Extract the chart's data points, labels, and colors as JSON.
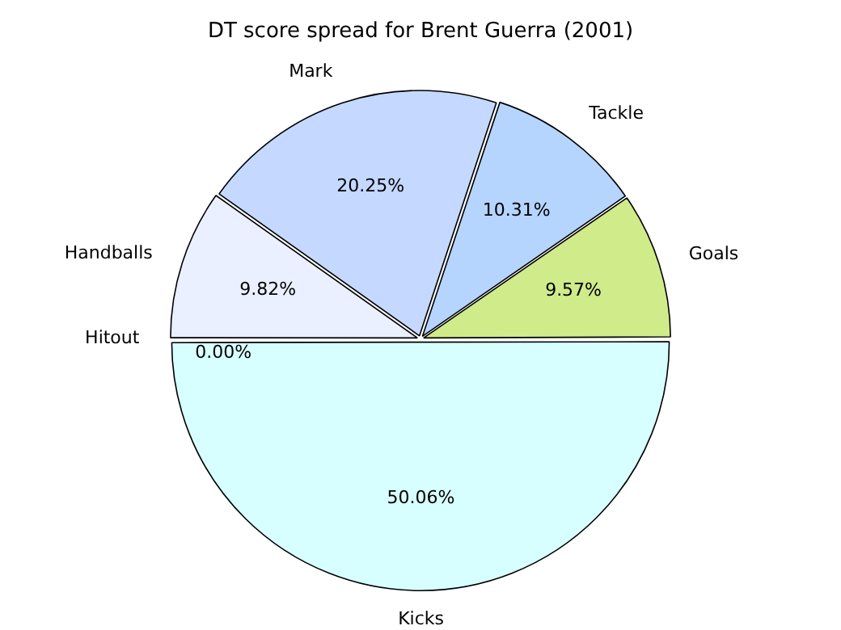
{
  "chart_data": {
    "type": "pie",
    "title": "DT score spread for Brent Guerra (2001)",
    "categories": [
      "Handballs",
      "Mark",
      "Tackle",
      "Goals",
      "Kicks",
      "Hitout"
    ],
    "values": [
      9.82,
      20.25,
      10.31,
      9.57,
      50.06,
      0.0
    ],
    "value_labels": [
      "9.82%",
      "20.25%",
      "10.31%",
      "9.57%",
      "50.06%",
      "0.00%"
    ],
    "colors": [
      "#eaf0ff",
      "#c5d8ff",
      "#b5d5ff",
      "#d0eb8a",
      "#d8ffff",
      "#e8e8e8"
    ],
    "legend": false
  }
}
